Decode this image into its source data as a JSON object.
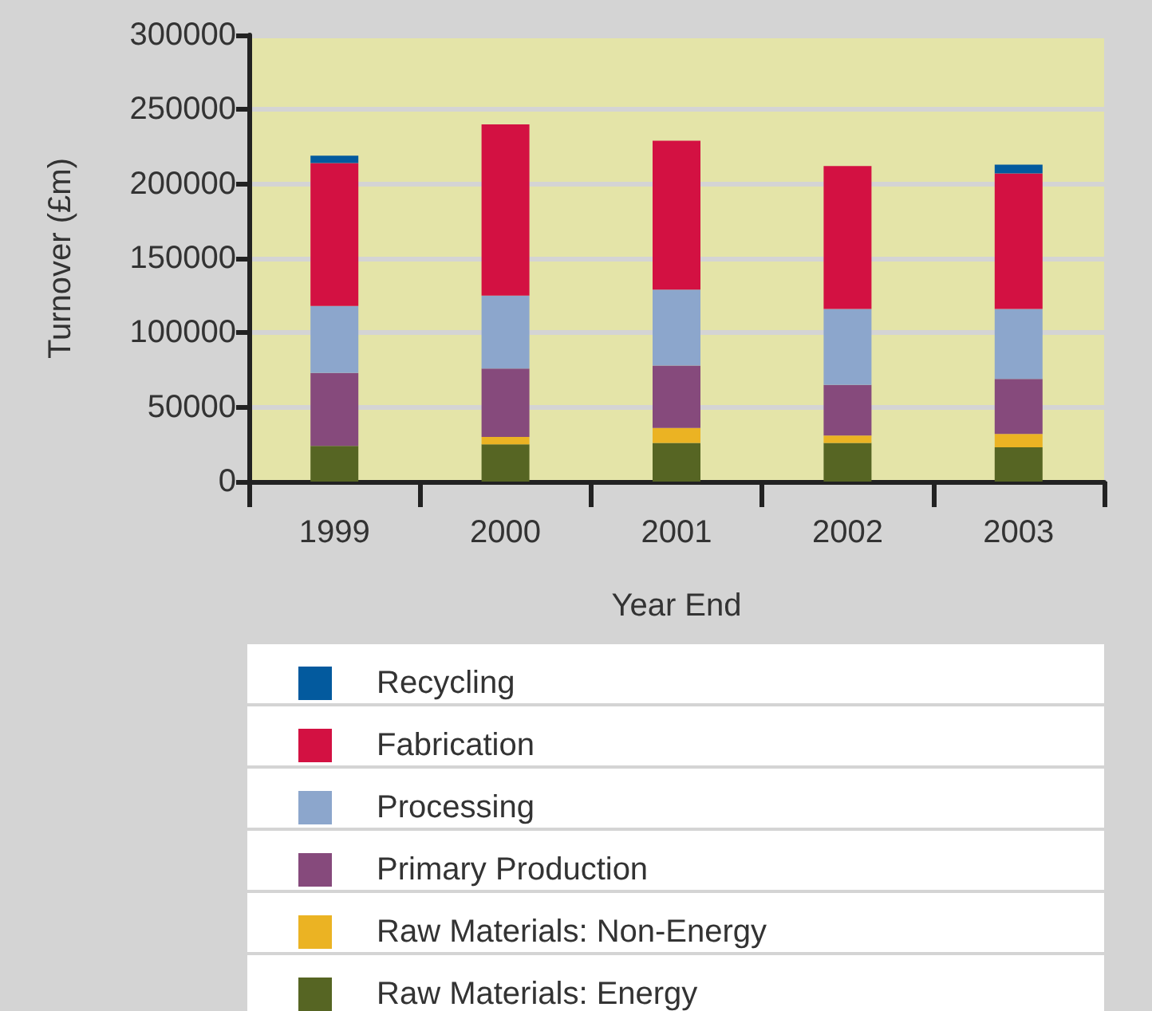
{
  "chart_data": {
    "type": "bar",
    "stacked": true,
    "xlabel": "Year End",
    "ylabel": "Turnover (£m)",
    "categories": [
      "1999",
      "2000",
      "2001",
      "2002",
      "2003"
    ],
    "series": [
      {
        "name": "Raw Materials: Energy",
        "color": "#566523",
        "values": [
          24000,
          25000,
          26000,
          26000,
          23000
        ]
      },
      {
        "name": "Raw Materials: Non-Energy",
        "color": "#ebb323",
        "values": [
          0,
          5000,
          10000,
          5000,
          9000
        ]
      },
      {
        "name": "Primary Production",
        "color": "#864a7c",
        "values": [
          49000,
          46000,
          42000,
          34000,
          37000
        ]
      },
      {
        "name": "Processing",
        "color": "#8ca6cc",
        "values": [
          45000,
          49000,
          51000,
          51000,
          47000
        ]
      },
      {
        "name": "Fabrication",
        "color": "#d31142",
        "values": [
          96000,
          115000,
          100000,
          96000,
          91000
        ]
      },
      {
        "name": "Recycling",
        "color": "#035a9e",
        "values": [
          5000,
          0,
          0,
          0,
          6000
        ]
      }
    ],
    "ylim": [
      0,
      300000
    ],
    "yticks": [
      0,
      50000,
      100000,
      150000,
      200000,
      250000,
      300000
    ],
    "grid": "y",
    "legend": "bottom"
  }
}
